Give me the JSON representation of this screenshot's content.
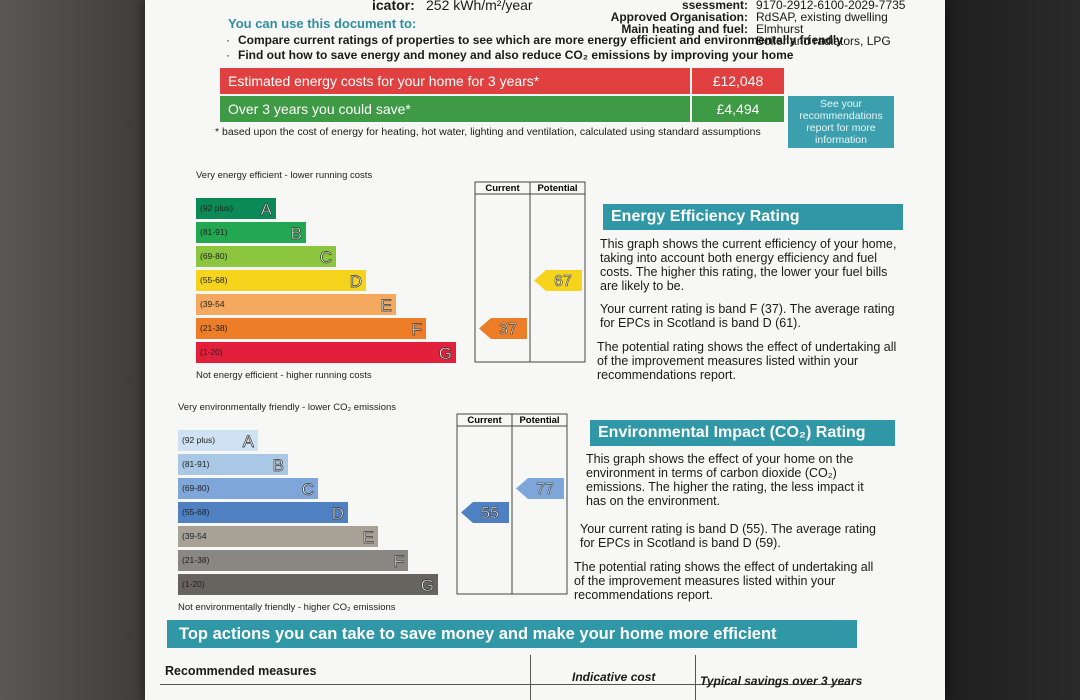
{
  "header": {
    "indicator_label": "icator:",
    "indicator_value": "252 kWh/m²/year",
    "field_labels": [
      "ssessment:",
      "Approved Organisation:",
      "Main heating and fuel:"
    ],
    "field_values": [
      "9170-2912-6100-2029-7735",
      "RdSAP, existing dwelling",
      "Elmhurst",
      "Boiler and radiators, LPG"
    ]
  },
  "uses": {
    "title": "You can use this document to:",
    "bullets": [
      "Compare current ratings of properties to see which are more energy efficient and environmentally friendly",
      "Find out how to save energy and money and also reduce CO₂ emissions by improving your home"
    ]
  },
  "costs": {
    "rows": [
      {
        "label": "Estimated energy costs for your home for 3 years*",
        "value": "£12,048"
      },
      {
        "label": "Over 3 years you could save*",
        "value": "£4,494"
      }
    ],
    "note": "See your recommendations report for more information",
    "footnote": "* based upon the cost of energy for heating, hot water, lighting and ventilation, calculated using standard assumptions"
  },
  "energy_chart": {
    "top_label": "Very energy efficient - lower running costs",
    "bottom_label": "Not energy efficient - higher running costs",
    "columns": [
      "Current",
      "Potential"
    ],
    "bands": [
      {
        "range": "(92 plus)",
        "letter": "A",
        "color": "#0b8a57"
      },
      {
        "range": "(81-91)",
        "letter": "B",
        "color": "#22a852"
      },
      {
        "range": "(69-80)",
        "letter": "C",
        "color": "#8cc63f"
      },
      {
        "range": "(55-68)",
        "letter": "D",
        "color": "#f6d31c"
      },
      {
        "range": "(39-54",
        "letter": "E",
        "color": "#f5a95f"
      },
      {
        "range": "(21-38)",
        "letter": "F",
        "color": "#ee7d27"
      },
      {
        "range": "(1-20)",
        "letter": "G",
        "color": "#e3203c"
      }
    ],
    "current": 37,
    "potential": 67
  },
  "energy_text": {
    "title": "Energy Efficiency Rating",
    "paragraphs": [
      "This graph shows the current efficiency of your home, taking into account both energy efficiency and fuel costs. The higher this rating, the lower your fuel bills are likely to be.",
      "Your current rating is band F (37). The average rating for EPCs in Scotland is band D (61).",
      "The potential rating shows the effect of undertaking all of the improvement measures listed within your recommendations report."
    ]
  },
  "environment_chart": {
    "top_label": "Very environmentally friendly - lower CO₂ emissions",
    "bottom_label": "Not environmentally friendly - higher CO₂ emissions",
    "columns": [
      "Current",
      "Potential"
    ],
    "bands": [
      {
        "range": "(92 plus)",
        "letter": "A",
        "color": "#cfe2f3"
      },
      {
        "range": "(81-91)",
        "letter": "B",
        "color": "#a9c8e6"
      },
      {
        "range": "(69-80)",
        "letter": "C",
        "color": "#7ea6d8"
      },
      {
        "range": "(55-68)",
        "letter": "D",
        "color": "#4e80c2"
      },
      {
        "range": "(39-54",
        "letter": "E",
        "color": "#a8a196"
      },
      {
        "range": "(21-38)",
        "letter": "F",
        "color": "#8a8682"
      },
      {
        "range": "(1-20)",
        "letter": "G",
        "color": "#67635f"
      }
    ],
    "current": 55,
    "potential": 77
  },
  "environment_text": {
    "title": "Environmental Impact (CO₂) Rating",
    "paragraphs": [
      "This graph shows the effect of your home on the environment in terms of carbon dioxide (CO₂) emissions. The higher the rating, the less impact it has on the environment.",
      "Your current rating is band D (55). The average rating for EPCs in Scotland is band D (59).",
      "The potential rating shows the effect of undertaking all of the improvement measures listed within your recommendations report."
    ]
  },
  "actions": {
    "title": "Top actions you can take to save money and make your home more efficient",
    "columns": [
      "Recommended measures",
      "Indicative cost",
      "Typical savings over 3 years"
    ]
  }
}
